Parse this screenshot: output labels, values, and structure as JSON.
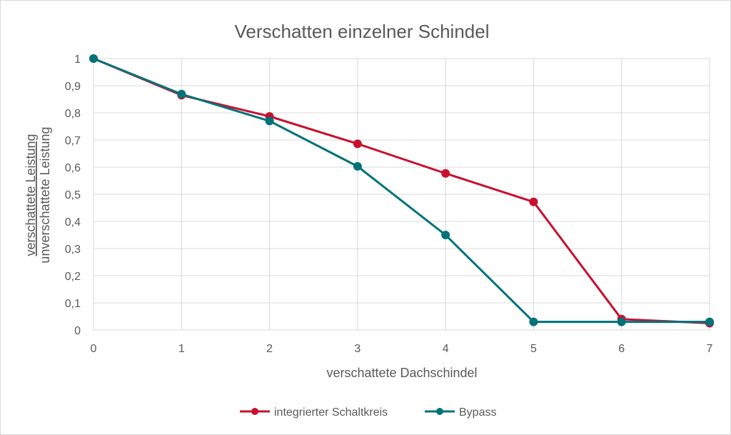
{
  "chart_data": {
    "type": "line",
    "title": "Verschatten einzelner Schindel",
    "xlabel": "verschattete Dachschindel",
    "ylabel_numerator": "verschattete Leistung",
    "ylabel_denominator": "unverschattete Leistung",
    "x": [
      0,
      1,
      2,
      3,
      4,
      5,
      6,
      7
    ],
    "x_tick_labels": [
      "0",
      "1",
      "2",
      "3",
      "4",
      "5",
      "6",
      "7"
    ],
    "y_tick_labels": [
      "0",
      "0,1",
      "0,2",
      "0,3",
      "0,4",
      "0,5",
      "0,6",
      "0,7",
      "0,8",
      "0,9",
      "1"
    ],
    "y_ticks": [
      0,
      0.1,
      0.2,
      0.3,
      0.4,
      0.5,
      0.6,
      0.7,
      0.8,
      0.9,
      1.0
    ],
    "xlim": [
      0,
      7
    ],
    "ylim": [
      0,
      1
    ],
    "grid": true,
    "legend_position": "bottom",
    "series": [
      {
        "name": "integrierter Schaltkreis",
        "color": "#c8102e",
        "values": [
          1.0,
          0.865,
          0.787,
          0.686,
          0.577,
          0.472,
          0.04,
          0.025
        ]
      },
      {
        "name": "Bypass",
        "color": "#00727a",
        "values": [
          1.0,
          0.869,
          0.77,
          0.603,
          0.35,
          0.03,
          0.03,
          0.03
        ]
      }
    ]
  }
}
